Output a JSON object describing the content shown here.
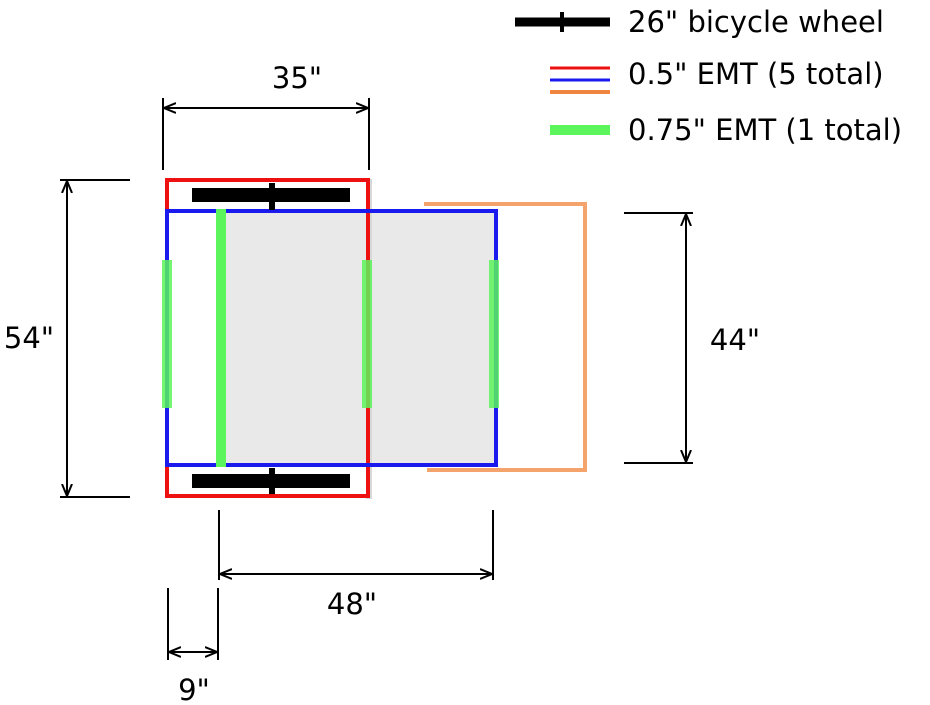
{
  "legend": {
    "wheel": "26\" bicycle wheel",
    "emt_half": "0.5\" EMT (5 total)",
    "emt_three_quarter": "0.75\" EMT (1 total)"
  },
  "dimensions": {
    "top_width": "35\"",
    "left_height": "54\"",
    "right_height": "44\"",
    "bottom_span": "48\"",
    "offset": "9\""
  },
  "colors": {
    "wheel": "#000000",
    "red_frame": "#ee1111",
    "blue_frame": "#1a1aee",
    "orange_frame": "#f5a36c",
    "green_pipe": "#5cf55c",
    "fill": "#e9e9e9"
  }
}
